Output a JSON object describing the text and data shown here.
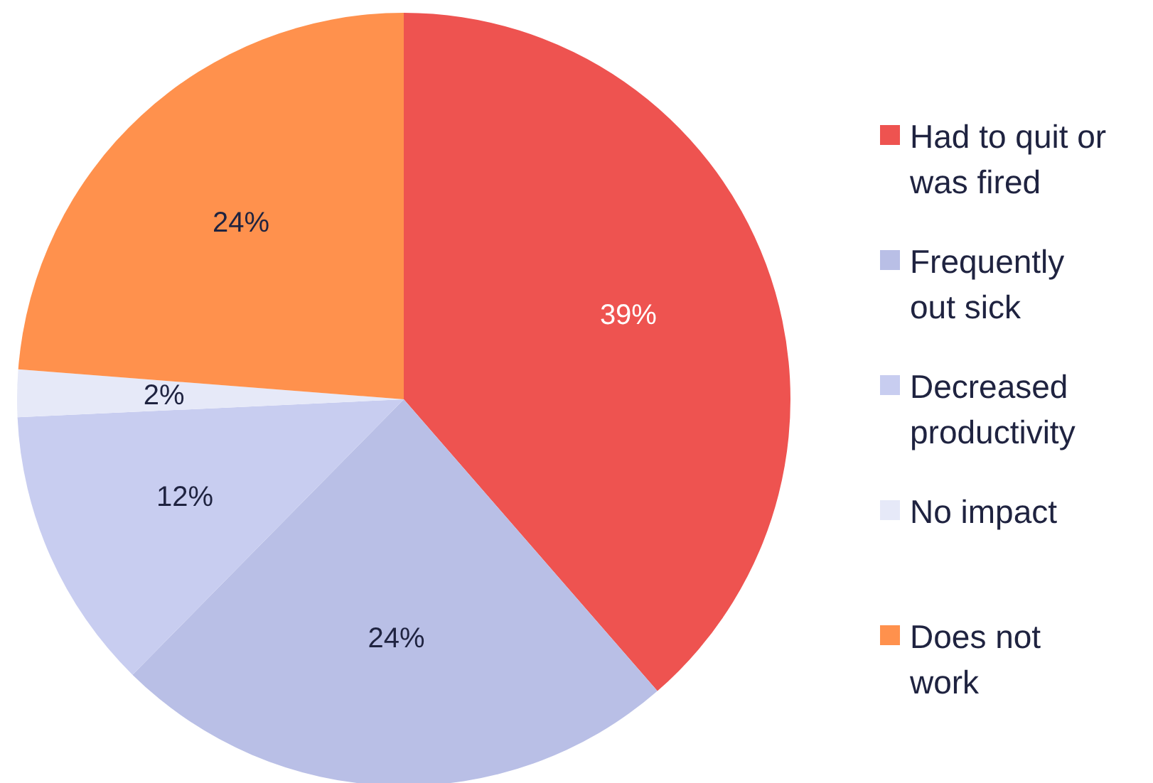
{
  "chart_data": {
    "type": "pie",
    "categories": [
      "Had to quit or was fired",
      "Frequently out sick",
      "Decreased productivity",
      "No impact",
      "Does not work"
    ],
    "values": [
      39,
      24,
      12,
      2,
      24
    ],
    "colors": [
      "#ee5350",
      "#b9bfe6",
      "#c8cdf0",
      "#e6e9f8",
      "#ff914d"
    ],
    "value_labels": [
      "39%",
      "24%",
      "12%",
      "2%",
      "24%"
    ],
    "legend": "right"
  }
}
